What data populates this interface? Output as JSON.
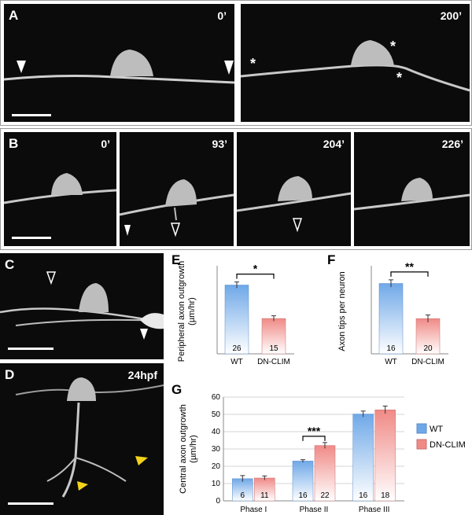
{
  "panels": {
    "A": {
      "label": "A",
      "times": [
        "0’",
        "200’"
      ]
    },
    "B": {
      "label": "B",
      "times": [
        "0’",
        "93’",
        "204’",
        "226’"
      ]
    },
    "C": {
      "label": "C"
    },
    "D": {
      "label": "D",
      "stage": "24hpf"
    },
    "E": {
      "label": "E"
    },
    "F": {
      "label": "F"
    },
    "G": {
      "label": "G"
    }
  },
  "colors": {
    "wt": "#6fa8e8",
    "dn": "#f08a86",
    "arrow_yellow": "#f2d21b"
  },
  "chart_data": [
    {
      "id": "E",
      "type": "bar",
      "ylabel": "Peripheral axon outgrowth",
      "yunit": "(µm/hr)",
      "categories": [
        "WT",
        "DN-CLIM"
      ],
      "values": [
        40.5,
        20.8
      ],
      "errors": [
        1.8,
        1.6
      ],
      "n": [
        "26",
        "15"
      ],
      "ylim": [
        0,
        50
      ],
      "significance": "*"
    },
    {
      "id": "F",
      "type": "bar",
      "ylabel": "Axon tips per neuron",
      "categories": [
        "WT",
        "DN-CLIM"
      ],
      "values": [
        5.8,
        2.9
      ],
      "errors": [
        0.3,
        0.3
      ],
      "n": [
        "16",
        "20"
      ],
      "ylim": [
        0,
        7
      ],
      "significance": "**"
    },
    {
      "id": "G",
      "type": "bar",
      "ylabel": "Central axon outgrowth",
      "yunit": "(µm/hr)",
      "categories": [
        "Phase I",
        "Phase II",
        "Phase III"
      ],
      "series": [
        {
          "name": "WT",
          "values": [
            12.8,
            23.0,
            50.2
          ],
          "errors": [
            1.8,
            0.8,
            1.7
          ],
          "n": [
            "6",
            "16",
            "16"
          ]
        },
        {
          "name": "DN-CLIM",
          "values": [
            13.2,
            32.0,
            52.6
          ],
          "errors": [
            1.2,
            1.7,
            2.2
          ],
          "n": [
            "11",
            "22",
            "18"
          ]
        }
      ],
      "ylim": [
        0,
        60
      ],
      "yticks": [
        0,
        10,
        20,
        30,
        40,
        50,
        60
      ],
      "significance": "***",
      "legend_position": "right"
    }
  ]
}
